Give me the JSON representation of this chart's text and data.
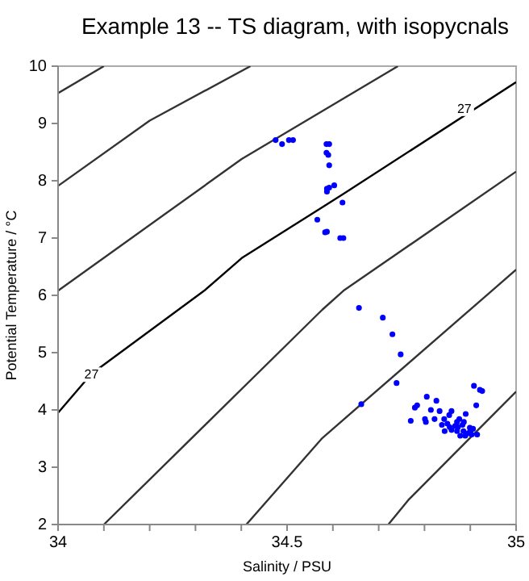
{
  "chart_data": {
    "type": "scatter",
    "title": "Example 13 -- TS diagram, with isopycnals",
    "xlabel": "Salinity / PSU",
    "ylabel": "Potential Temperature / °C",
    "xlim": [
      34,
      35
    ],
    "xticks": [
      34,
      {
        "value": 34.1,
        "label": null
      },
      {
        "value": 34.2,
        "label": null
      },
      {
        "value": 34.3,
        "label": null
      },
      {
        "value": 34.4,
        "label": null
      },
      34.5,
      {
        "value": 34.6,
        "label": null
      },
      {
        "value": 34.7,
        "label": null
      },
      {
        "value": 34.8,
        "label": null
      },
      {
        "value": 34.9,
        "label": null
      },
      35
    ],
    "ylim": [
      2,
      10
    ],
    "yticks": [
      2,
      3,
      4,
      5,
      6,
      7,
      8,
      9,
      10
    ],
    "grid": false,
    "annotations": [
      {
        "text": "27",
        "x": 34.073,
        "y": 4.63
      },
      {
        "text": "27",
        "x": 34.887,
        "y": 9.27
      }
    ],
    "series": [
      {
        "type": "line",
        "color": "#333333",
        "x": [
          34.0,
          34.1
        ],
        "values": [
          9.53,
          10
        ]
      },
      {
        "type": "line",
        "color": "#333333",
        "x": [
          34.0,
          34.2,
          34.42
        ],
        "values": [
          7.91,
          9.05,
          10
        ]
      },
      {
        "type": "line",
        "color": "#333333",
        "x": [
          34.0,
          34.401,
          34.742
        ],
        "values": [
          6.08,
          8.38,
          10
        ]
      },
      {
        "type": "line",
        "color": "#000000",
        "x": [
          34.0,
          34.073,
          34.319,
          34.401,
          34.623,
          35.0
        ],
        "values": [
          3.95,
          4.63,
          6.08,
          6.65,
          7.77,
          9.72
        ]
      },
      {
        "type": "line",
        "color": "#333333",
        "x": [
          34.1,
          34.577,
          34.623,
          35.0
        ],
        "values": [
          2,
          5.75,
          6.08,
          8.16
        ]
      },
      {
        "type": "line",
        "color": "#333333",
        "x": [
          34.411,
          34.577,
          34.947,
          35.0
        ],
        "values": [
          2,
          3.51,
          6.08,
          6.45
        ]
      },
      {
        "type": "line",
        "color": "#333333",
        "x": [
          34.721,
          34.765,
          35.0
        ],
        "values": [
          2,
          2.43,
          4.32
        ]
      },
      {
        "color": "#0000ff",
        "marker": "circle",
        "x": [
          34.475,
          34.489,
          34.504,
          34.513,
          34.586,
          34.592,
          34.586,
          34.59,
          34.592,
          34.603,
          34.587,
          34.587,
          34.592,
          34.621,
          34.566,
          34.583,
          34.587,
          34.616,
          34.623,
          34.657,
          34.709,
          34.73,
          34.748,
          34.739,
          34.662,
          34.908,
          34.921,
          34.926,
          34.913,
          34.805,
          34.826,
          34.784,
          34.779,
          34.814,
          34.833,
          34.859,
          34.77,
          34.801,
          34.803,
          34.822,
          34.843,
          34.854,
          34.876,
          34.89,
          34.838,
          34.85,
          34.867,
          34.883,
          34.899,
          34.859,
          34.871,
          34.885,
          34.9,
          34.915,
          34.878,
          34.889,
          34.894,
          34.903,
          34.906,
          34.844,
          34.855,
          34.871,
          34.886,
          34.873
        ],
        "values": [
          8.71,
          8.64,
          8.71,
          8.71,
          8.64,
          8.64,
          8.49,
          8.45,
          8.27,
          7.92,
          7.86,
          7.81,
          7.88,
          7.62,
          7.32,
          7.1,
          7.11,
          7.0,
          7.0,
          5.78,
          5.61,
          5.32,
          4.97,
          4.47,
          4.1,
          4.42,
          4.35,
          4.33,
          4.08,
          4.23,
          4.16,
          4.08,
          4.04,
          4.0,
          3.98,
          3.98,
          3.81,
          3.84,
          3.79,
          3.84,
          3.84,
          3.91,
          3.84,
          3.93,
          3.74,
          3.76,
          3.72,
          3.74,
          3.69,
          3.65,
          3.63,
          3.63,
          3.63,
          3.57,
          3.55,
          3.55,
          3.59,
          3.57,
          3.67,
          3.63,
          3.7,
          3.79,
          3.79,
          3.7
        ]
      }
    ]
  }
}
